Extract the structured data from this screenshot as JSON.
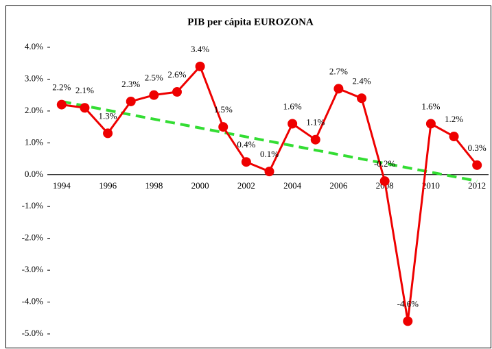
{
  "chart_data": {
    "type": "line",
    "title": "PIB per cápita EUROZONA",
    "categories": [
      "1994",
      null,
      "1996",
      null,
      "1998",
      null,
      "2000",
      null,
      "2002",
      null,
      "2004",
      null,
      "2006",
      null,
      "2008",
      null,
      "2010",
      null,
      "2012"
    ],
    "series": [
      {
        "color": "#ee0000",
        "values": [
          2.2,
          2.1,
          1.3,
          2.3,
          2.5,
          2.6,
          3.4,
          1.5,
          0.4,
          0.1,
          1.6,
          1.1,
          2.7,
          2.4,
          -0.2,
          -4.6,
          1.6,
          1.2,
          0.3
        ],
        "value_labels": [
          "2.2%",
          "2.1%",
          "1.3%",
          "2.3%",
          "2.5%",
          "2.6%",
          "3.4%",
          "1.5%",
          "0.4%",
          "0.1%",
          "1.6%",
          "1.1%",
          "2.7%",
          "2.4%",
          "-0.2%",
          "-4.6%",
          "1.6%",
          "1.2%",
          "0.3%"
        ]
      }
    ],
    "trendline": {
      "color": "#33dd33",
      "values": [
        2.3,
        -0.2
      ]
    },
    "ylim": [
      -5,
      4
    ],
    "yticks": [
      {
        "value": 4,
        "label": "4.0%"
      },
      {
        "value": 3,
        "label": "3.0%"
      },
      {
        "value": 2,
        "label": "2.0%"
      },
      {
        "value": 1,
        "label": "1.0%"
      },
      {
        "value": 0,
        "label": "0.0%"
      },
      {
        "value": -1,
        "label": "-1.0%"
      },
      {
        "value": -2,
        "label": "-2.0%"
      },
      {
        "value": -3,
        "label": "-3.0%"
      },
      {
        "value": -4,
        "label": "-4.0%"
      },
      {
        "value": -5,
        "label": "-5.0%"
      }
    ]
  }
}
